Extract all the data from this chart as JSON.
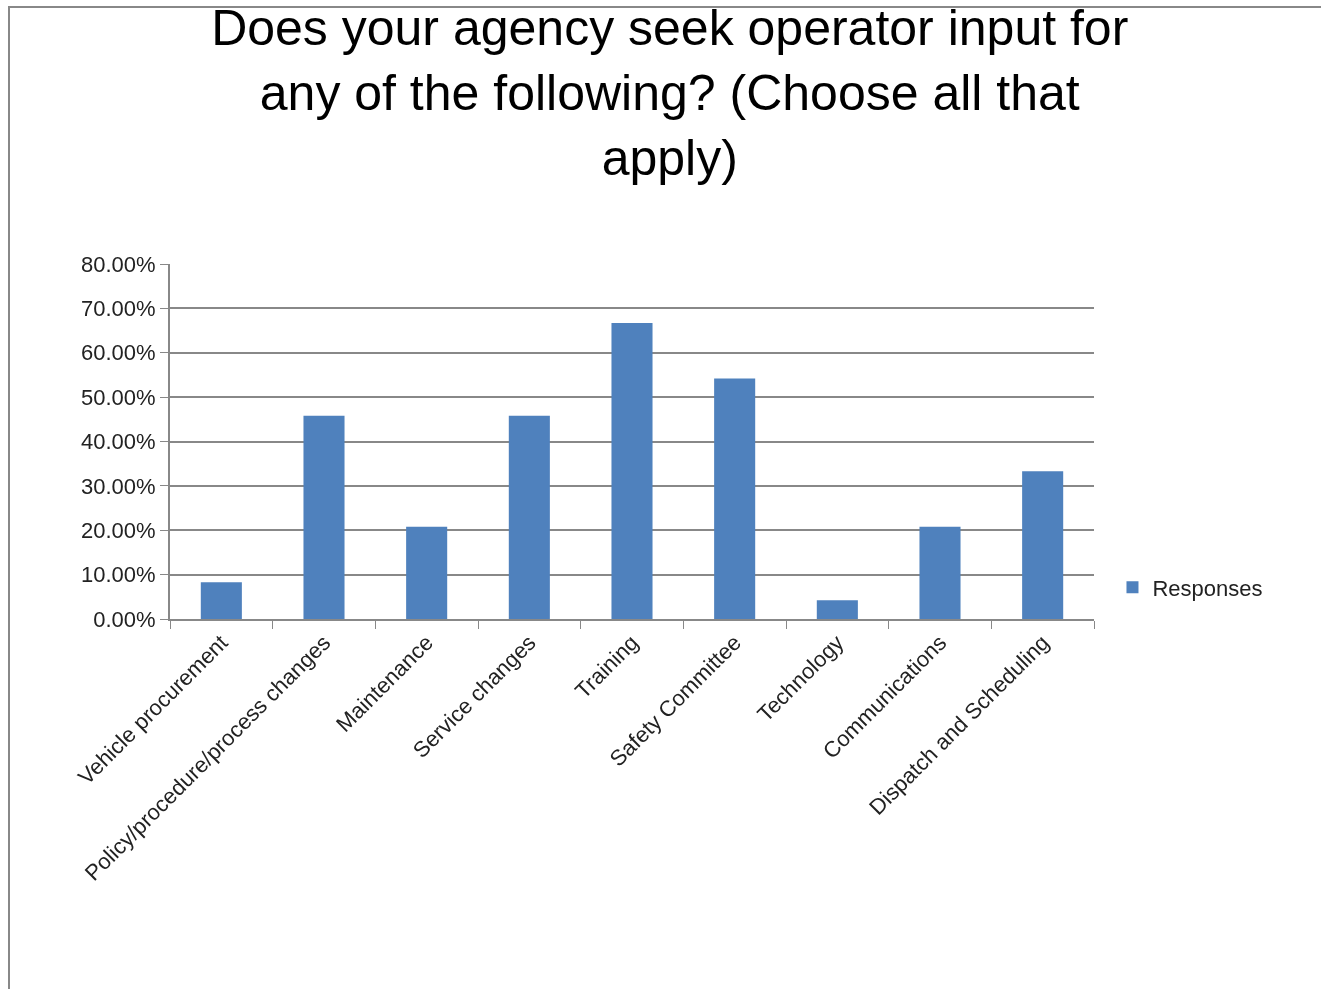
{
  "chart_data": {
    "type": "bar",
    "title": "Does your agency seek operator input for any of the following? (Choose all that apply)",
    "categories": [
      "Vehicle procurement",
      "Policy/procedure/process changes",
      "Maintenance",
      "Service changes",
      "Training",
      "Safety Committee",
      "Technology",
      "Communications",
      "Dispatch and Scheduling"
    ],
    "series": [
      {
        "name": "Responses",
        "color": "#4f81bd",
        "values": [
          8.3,
          45.8,
          20.8,
          45.8,
          66.7,
          54.2,
          4.2,
          20.8,
          33.3
        ]
      }
    ],
    "ylim": [
      0,
      80
    ],
    "yticks": [
      {
        "value": 0,
        "label": "0.00%"
      },
      {
        "value": 10,
        "label": "10.00%"
      },
      {
        "value": 20,
        "label": "20.00%"
      },
      {
        "value": 30,
        "label": "30.00%"
      },
      {
        "value": 40,
        "label": "40.00%"
      },
      {
        "value": 50,
        "label": "50.00%"
      },
      {
        "value": 60,
        "label": "60.00%"
      },
      {
        "value": 70,
        "label": "70.00%"
      },
      {
        "value": 80,
        "label": "80.00%"
      }
    ],
    "grid": "y",
    "legend": "right"
  }
}
